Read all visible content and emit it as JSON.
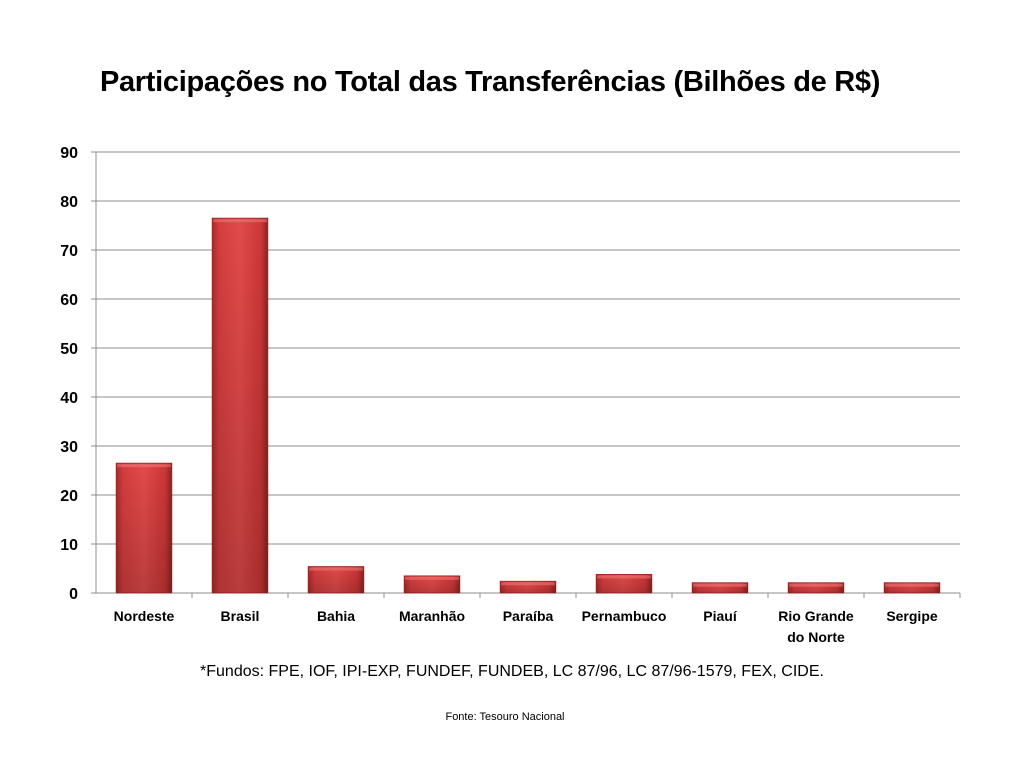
{
  "chart_data": {
    "type": "bar",
    "title": "Participações no Total das Transferências (Bilhões de R$)",
    "xlabel": "",
    "ylabel": "",
    "categories": [
      "Nordeste",
      "Brasil",
      "Bahia",
      "Maranhão",
      "Paraíba",
      "Pernambuco",
      "Piauí",
      "Rio Grande do Norte",
      "Sergipe"
    ],
    "category_lines": [
      [
        "Nordeste"
      ],
      [
        "Brasil"
      ],
      [
        "Bahia"
      ],
      [
        "Maranhão"
      ],
      [
        "Paraíba"
      ],
      [
        "Pernambuco"
      ],
      [
        "Piauí"
      ],
      [
        "Rio Grande",
        "do Norte"
      ],
      [
        "Sergipe"
      ]
    ],
    "values": [
      26.5,
      76.5,
      5.4,
      3.5,
      2.4,
      3.8,
      2.1,
      2.1,
      2.1
    ],
    "ylim": [
      0,
      90
    ],
    "yticks": [
      0,
      10,
      20,
      30,
      40,
      50,
      60,
      70,
      80,
      90
    ],
    "grid": true,
    "legend": "none",
    "bar_color": "#d63c3c",
    "bar_color_dark": "#9e2727"
  },
  "footnote": "*Fundos: FPE, IOF, IPI-EXP, FUNDEF, FUNDEB, LC 87/96, LC 87/96-1579, FEX, CIDE.",
  "source": "Fonte: Tesouro Nacional"
}
